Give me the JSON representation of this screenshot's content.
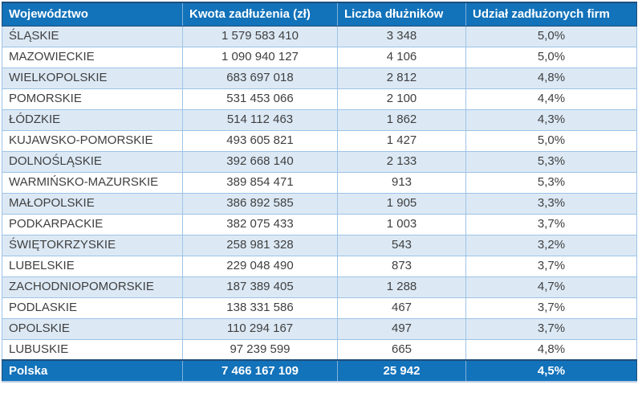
{
  "chart_data": {
    "type": "table",
    "columns": [
      "Województwo",
      "Kwota zadłużenia (zł)",
      "Liczba dłużników",
      "Udział zadłużonych firm"
    ],
    "rows": [
      [
        "ŚLĄSKIE",
        "1 579 583 410",
        "3 348",
        "5,0%"
      ],
      [
        "MAZOWIECKIE",
        "1 090 940 127",
        "4 106",
        "5,0%"
      ],
      [
        "WIELKOPOLSKIE",
        "683 697 018",
        "2 812",
        "4,8%"
      ],
      [
        "POMORSKIE",
        "531 453 066",
        "2 100",
        "4,4%"
      ],
      [
        "ŁÓDZKIE",
        "514 112 463",
        "1 862",
        "4,3%"
      ],
      [
        "KUJAWSKO-POMORSKIE",
        "493 605 821",
        "1 427",
        "5,0%"
      ],
      [
        "DOLNOŚLĄSKIE",
        "392 668 140",
        "2 133",
        "5,3%"
      ],
      [
        "WARMIŃSKO-MAZURSKIE",
        "389 854 471",
        "913",
        "5,3%"
      ],
      [
        "MAŁOPOLSKIE",
        "386 892 585",
        "1 905",
        "3,3%"
      ],
      [
        "PODKARPACKIE",
        "382 075 433",
        "1 003",
        "3,7%"
      ],
      [
        "ŚWIĘTOKRZYSKIE",
        "258 981 328",
        "543",
        "3,2%"
      ],
      [
        "LUBELSKIE",
        "229 048 490",
        "873",
        "3,7%"
      ],
      [
        "ZACHODNIOPOMORSKIE",
        "187 389 405",
        "1 288",
        "4,7%"
      ],
      [
        "PODLASKIE",
        "138 331 586",
        "467",
        "3,7%"
      ],
      [
        "OPOLSKIE",
        "110 294 167",
        "497",
        "3,7%"
      ],
      [
        "LUBUSKIE",
        "97 239 599",
        "665",
        "4,8%"
      ]
    ],
    "footer": [
      "Polska",
      "7 466 167 109",
      "25 942",
      "4,5%"
    ],
    "title": "",
    "layout": {
      "grid": "on",
      "zebra_striping": true,
      "header_position": "top",
      "summary_row_position": "bottom"
    },
    "colors": {
      "header_bg": "#1272BA",
      "header_text": "#FFFFFF",
      "row_alt_bg": "#DCE9F5",
      "row_bg": "#FFFFFF",
      "grid_border": "#9DC3E6",
      "dark_border": "#1F4E79",
      "body_text": "#3F3F3F",
      "footer_bg": "#1272BA",
      "footer_text": "#FFFFFF"
    }
  }
}
